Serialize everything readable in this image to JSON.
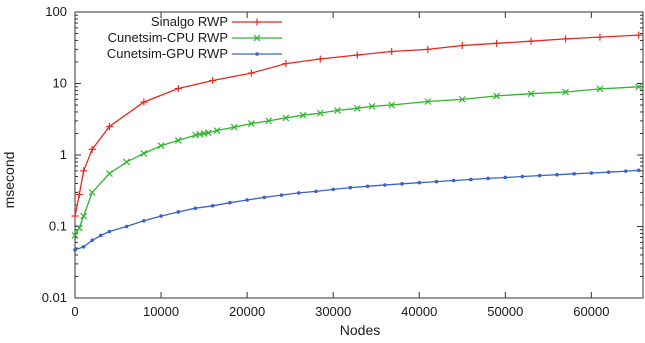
{
  "chart_data": {
    "type": "line",
    "title": "",
    "xlabel": "Nodes",
    "ylabel": "msecond",
    "xlim": [
      0,
      66000
    ],
    "ylim": [
      0.01,
      100
    ],
    "yscale": "log",
    "grid": false,
    "legend_position": "top-left",
    "x_ticks": [
      0,
      10000,
      20000,
      30000,
      40000,
      50000,
      60000
    ],
    "x_tick_labels": [
      "0",
      "10000",
      "20000",
      "30000",
      "40000",
      "50000",
      "60000"
    ],
    "y_ticks": [
      0.01,
      0.1,
      1,
      10,
      100
    ],
    "y_tick_labels": [
      "0.01",
      "0.1",
      "1",
      "10",
      "100"
    ],
    "series": [
      {
        "name": "Sinalgo RWP",
        "color": "#e8281e",
        "marker": "plus",
        "x": [
          0,
          500,
          1000,
          2000,
          4000,
          8000,
          12000,
          16000,
          20500,
          24500,
          28500,
          32800,
          36800,
          41000,
          45000,
          49000,
          53000,
          57000,
          61000,
          65500
        ],
        "y": [
          0.14,
          0.28,
          0.6,
          1.2,
          2.5,
          5.5,
          8.5,
          11,
          14,
          19,
          22,
          25,
          28,
          30,
          34,
          36.5,
          39,
          42,
          44.5,
          47.5
        ]
      },
      {
        "name": "Cunetsim-CPU RWP",
        "color": "#2fb52f",
        "marker": "x",
        "x": [
          0,
          500,
          1000,
          2000,
          4000,
          6000,
          8000,
          10000,
          12000,
          14000,
          14500,
          15000,
          15500,
          16500,
          18500,
          20500,
          22500,
          24500,
          26500,
          28500,
          30500,
          32800,
          34500,
          36800,
          41000,
          45000,
          49000,
          53000,
          57000,
          61000,
          65500
        ],
        "y": [
          0.075,
          0.095,
          0.14,
          0.3,
          0.55,
          0.8,
          1.05,
          1.35,
          1.6,
          1.9,
          1.95,
          2.0,
          2.05,
          2.2,
          2.45,
          2.75,
          3.0,
          3.3,
          3.6,
          3.85,
          4.2,
          4.5,
          4.8,
          5.0,
          5.6,
          6.0,
          6.7,
          7.2,
          7.6,
          8.4,
          9.0
        ]
      },
      {
        "name": "Cunetsim-GPU RWP",
        "color": "#3a63c9",
        "marker": "dot",
        "x": [
          0,
          1000,
          2000,
          3000,
          4000,
          6000,
          8000,
          10000,
          12000,
          14000,
          16000,
          18000,
          20000,
          22000,
          24000,
          26000,
          28000,
          30000,
          32000,
          34000,
          36000,
          38000,
          40000,
          42000,
          44000,
          46000,
          48000,
          50000,
          52000,
          54000,
          56000,
          58000,
          60000,
          62000,
          64000,
          65500
        ],
        "y": [
          0.047,
          0.052,
          0.064,
          0.075,
          0.085,
          0.1,
          0.12,
          0.14,
          0.16,
          0.18,
          0.195,
          0.215,
          0.235,
          0.255,
          0.275,
          0.295,
          0.31,
          0.33,
          0.35,
          0.365,
          0.38,
          0.395,
          0.41,
          0.425,
          0.44,
          0.455,
          0.47,
          0.485,
          0.5,
          0.515,
          0.53,
          0.545,
          0.56,
          0.575,
          0.595,
          0.61
        ]
      }
    ]
  }
}
